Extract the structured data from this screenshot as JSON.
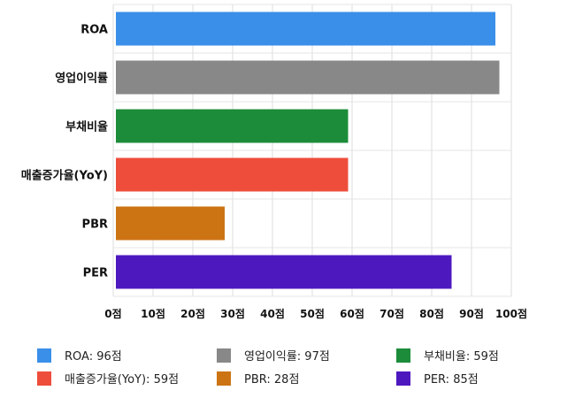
{
  "chart_data": {
    "type": "bar",
    "orientation": "horizontal",
    "categories": [
      "ROA",
      "영업이익률",
      "부채비율",
      "매출증가율(YoY)",
      "PBR",
      "PER"
    ],
    "values": [
      96,
      97,
      59,
      59,
      28,
      85
    ],
    "colors": [
      "#3a8fe8",
      "#888888",
      "#1c8c3a",
      "#ee4d3b",
      "#cc7414",
      "#4e18bf"
    ],
    "xlim": [
      0,
      100
    ],
    "xticks": [
      0,
      10,
      20,
      30,
      40,
      50,
      60,
      70,
      80,
      90,
      100
    ],
    "tick_suffix": "점",
    "grid": true,
    "legend_position": "bottom",
    "legend": [
      {
        "label": "ROA: 96점",
        "color": "#3a8fe8"
      },
      {
        "label": "영업이익률: 97점",
        "color": "#888888"
      },
      {
        "label": "부채비율: 59점",
        "color": "#1c8c3a"
      },
      {
        "label": "매출증가율(YoY): 59점",
        "color": "#ee4d3b"
      },
      {
        "label": "PBR: 28점",
        "color": "#cc7414"
      },
      {
        "label": "PER: 85점",
        "color": "#4e18bf"
      }
    ]
  }
}
